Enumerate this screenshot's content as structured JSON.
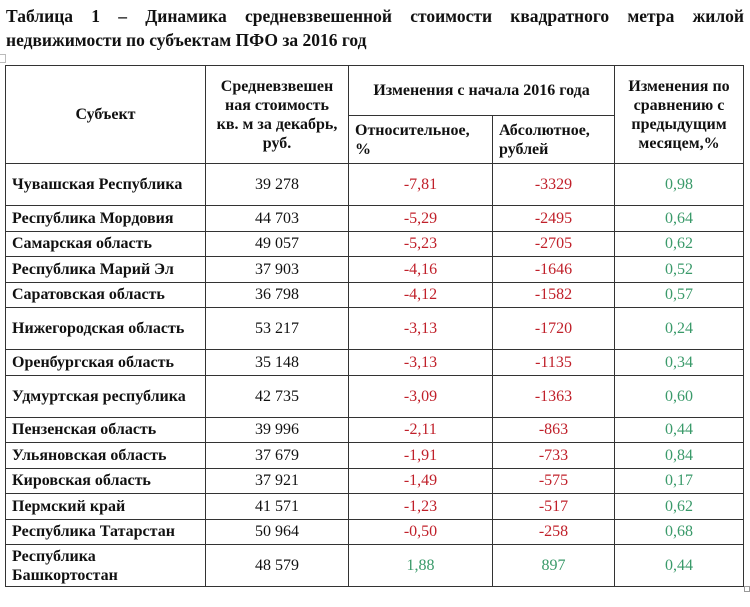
{
  "caption": {
    "line1": "Таблица 1 – Динамика средневзвешенной стоимости квадратного метра жилой",
    "line2": "недвижимости по субъектам ПФО за 2016 год"
  },
  "table": {
    "headers": {
      "subject": "Субъект",
      "price": "Средневзвешен ная стоимость кв. м за декабрь, руб.",
      "change_since_start": "Изменения с начала 2016 года",
      "relative": "Относительное, %",
      "absolute": "Абсолютное, рублей",
      "monthly": "Изменения по сравнению с предыдущим месяцем,%"
    },
    "colors": {
      "negative": "#c0202a",
      "positive": "#3a9a6a"
    },
    "rows": [
      {
        "subject": "Чувашская Республика",
        "price": "39 278",
        "relative": "-7,81",
        "absolute": "-3329",
        "monthly": "0,98"
      },
      {
        "subject": "Республика Мордовия",
        "price": "44 703",
        "relative": "-5,29",
        "absolute": "-2495",
        "monthly": "0,64"
      },
      {
        "subject": "Самарская область",
        "price": "49 057",
        "relative": "-5,23",
        "absolute": "-2705",
        "monthly": "0,62"
      },
      {
        "subject": "Республика Марий Эл",
        "price": "37 903",
        "relative": "-4,16",
        "absolute": "-1646",
        "monthly": "0,52"
      },
      {
        "subject": "Саратовская область",
        "price": "36 798",
        "relative": "-4,12",
        "absolute": "-1582",
        "monthly": "0,57"
      },
      {
        "subject": "Нижегородская область",
        "price": "53 217",
        "relative": "-3,13",
        "absolute": "-1720",
        "monthly": "0,24"
      },
      {
        "subject": "Оренбургская область",
        "price": "35 148",
        "relative": "-3,13",
        "absolute": "-1135",
        "monthly": "0,34"
      },
      {
        "subject": "Удмуртская республика",
        "price": "42 735",
        "relative": "-3,09",
        "absolute": "-1363",
        "monthly": "0,60"
      },
      {
        "subject": "Пензенская область",
        "price": "39 996",
        "relative": "-2,11",
        "absolute": "-863",
        "monthly": "0,44"
      },
      {
        "subject": "Ульяновская область",
        "price": "37 679",
        "relative": "-1,91",
        "absolute": "-733",
        "monthly": "0,84"
      },
      {
        "subject": "Кировская область",
        "price": "37 921",
        "relative": "-1,49",
        "absolute": "-575",
        "monthly": "0,17"
      },
      {
        "subject": "Пермский край",
        "price": "41 571",
        "relative": "-1,23",
        "absolute": "-517",
        "monthly": "0,62"
      },
      {
        "subject": "Республика Татарстан",
        "price": "50 964",
        "relative": "-0,50",
        "absolute": "-258",
        "monthly": "0,68"
      },
      {
        "subject": "Республика Башкортостан",
        "price": "48 579",
        "relative": "1,88",
        "absolute": "897",
        "monthly": "0,44"
      }
    ]
  }
}
